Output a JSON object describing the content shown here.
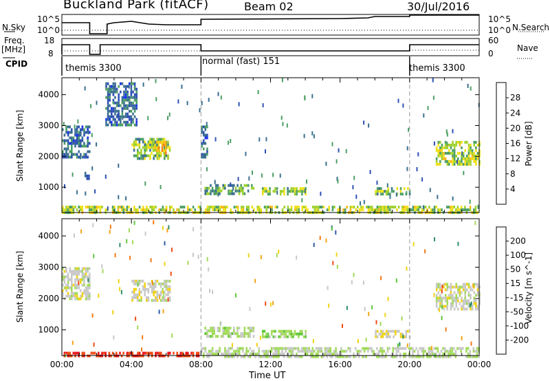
{
  "header": {
    "title": "Buckland Park (fitACF)",
    "beam": "Beam 02",
    "date": "30/Jul/2016"
  },
  "panels": {
    "nsky": {
      "label": "N.Sky",
      "tick_top": "10^5",
      "tick_bottom": "10^0"
    },
    "nsearch": {
      "label": "N.Search",
      "tick_top": "10^5",
      "tick_bottom": "10^0"
    },
    "freq": {
      "label_line1": "Freq.",
      "label_line2": "[MHz]",
      "tick_top": "18",
      "tick_bottom": "8"
    },
    "nave": {
      "label": "Nave",
      "tick_top": "60",
      "tick_bottom": "0"
    },
    "cpid": {
      "label": "CPID"
    }
  },
  "cpid_segments": [
    {
      "text": "themis 3300",
      "start_hour": 0
    },
    {
      "text": "normal (fast) 151",
      "start_hour": 8
    },
    {
      "text": "themis 3300",
      "start_hour": 20
    }
  ],
  "colorbars": {
    "power": {
      "title": "Power [dB]",
      "ticks": [
        "28",
        "24",
        "20",
        "16",
        "12",
        "8",
        "4"
      ],
      "colors": [
        "#e8121a",
        "#f24a14",
        "#f77f14",
        "#f7b714",
        "#f0e018",
        "#9ed12e",
        "#4c9e64",
        "#3a6f8f",
        "#2d4fb4",
        "#1830ee"
      ]
    },
    "velocity": {
      "title": "Velocity [m s^-1]",
      "ticks": [
        "200",
        "100",
        "50",
        "15",
        "-15",
        "-50",
        "-100",
        "-200"
      ],
      "colors": [
        "#1d2fb5",
        "#2d5aa6",
        "#2f8a6c",
        "#5fc63a",
        "#a2da5a",
        "#c8c8c8",
        "#f0d214",
        "#f3a416",
        "#f27a16",
        "#ef4a14",
        "#e8121a"
      ]
    }
  },
  "chart_data": [
    {
      "type": "heatmap",
      "name": "Power",
      "ylabel": "Slant Range [km]",
      "yticks": [
        1000,
        2000,
        3000,
        4000
      ],
      "ylim": [
        180,
        4550
      ],
      "xlim": [
        0,
        24
      ],
      "colorbar": "Power [dB]",
      "clim": [
        0,
        30
      ],
      "regions": [
        {
          "t": [
            0.0,
            1.6
          ],
          "r": [
            2000,
            3000
          ],
          "level": 6
        },
        {
          "t": [
            1.3,
            1.6
          ],
          "r": [
            1300,
            1500
          ],
          "level": 6
        },
        {
          "t": [
            4.0,
            6.2
          ],
          "r": [
            1900,
            2600
          ],
          "level": 12
        },
        {
          "t": [
            5.0,
            6.0
          ],
          "r": [
            2100,
            2500
          ],
          "level": 18
        },
        {
          "t": [
            2.5,
            4.3
          ],
          "r": [
            3000,
            4400
          ],
          "level": 6
        },
        {
          "t": [
            8.0,
            8.4
          ],
          "r": [
            2000,
            3000
          ],
          "level": 6
        },
        {
          "t": [
            8.2,
            11.0
          ],
          "r": [
            750,
            1100
          ],
          "level": 10
        },
        {
          "t": [
            11.5,
            14.0
          ],
          "r": [
            800,
            1000
          ],
          "level": 13
        },
        {
          "t": [
            18.0,
            20.0
          ],
          "r": [
            800,
            1000
          ],
          "level": 12
        },
        {
          "t": [
            21.5,
            24.0
          ],
          "r": [
            1700,
            2500
          ],
          "level": 14
        },
        {
          "t": [
            0.0,
            24.0
          ],
          "r": [
            180,
            400
          ],
          "level": 14
        }
      ]
    },
    {
      "type": "heatmap",
      "name": "Velocity",
      "ylabel": "Slant Range [km]",
      "yticks": [
        1000,
        2000,
        3000,
        4000
      ],
      "ylim": [
        180,
        4550
      ],
      "xlim": [
        0,
        24
      ],
      "xticks": [
        "00:00",
        "04:00",
        "08:00",
        "12:00",
        "16:00",
        "20:00",
        "00:00"
      ],
      "xlabel": "Time UT",
      "colorbar": "Velocity [m s^-1]",
      "clim": [
        -250,
        250
      ],
      "regions": [
        {
          "t": [
            0.0,
            1.6
          ],
          "r": [
            2000,
            3000
          ],
          "level": 0
        },
        {
          "t": [
            4.0,
            6.2
          ],
          "r": [
            1900,
            2600
          ],
          "level": 0
        },
        {
          "t": [
            8.2,
            11.0
          ],
          "r": [
            750,
            1100
          ],
          "level": 40
        },
        {
          "t": [
            11.5,
            14.0
          ],
          "r": [
            800,
            1000
          ],
          "level": 60
        },
        {
          "t": [
            18.0,
            20.0
          ],
          "r": [
            800,
            1000
          ],
          "level": -20
        },
        {
          "t": [
            21.5,
            24.0
          ],
          "r": [
            1700,
            2500
          ],
          "level": 0
        },
        {
          "t": [
            0.0,
            8.0
          ],
          "r": [
            180,
            300
          ],
          "level": -220
        },
        {
          "t": [
            8.0,
            24.0
          ],
          "r": [
            180,
            450
          ],
          "level": 25
        }
      ]
    }
  ]
}
